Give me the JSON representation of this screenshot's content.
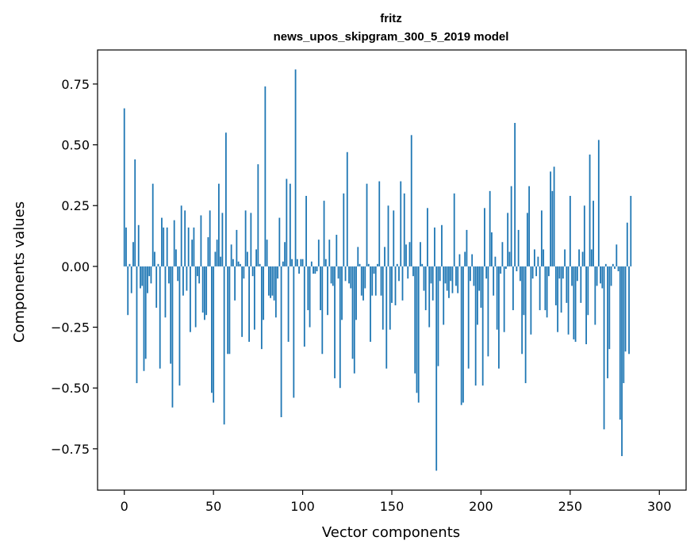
{
  "chart_data": {
    "type": "bar",
    "title": "fritz",
    "subtitle": "news_upos_skipgram_300_5_2019 model",
    "xlabel": "Vector components",
    "ylabel": "Components values",
    "xlim": [
      -15,
      315
    ],
    "ylim": [
      -0.92,
      0.89
    ],
    "xticks": [
      0,
      50,
      100,
      150,
      200,
      250,
      300
    ],
    "yticks": [
      -0.75,
      -0.5,
      -0.25,
      0.0,
      0.25,
      0.5,
      0.75
    ],
    "ytick_labels": [
      "−0.75",
      "−0.50",
      "−0.25",
      "0.00",
      "0.25",
      "0.50",
      "0.75"
    ],
    "xtick_labels": [
      "0",
      "50",
      "100",
      "150",
      "200",
      "250",
      "300"
    ],
    "bar_color": "#1f77b4",
    "values": [
      0.65,
      0.16,
      -0.2,
      0.01,
      -0.11,
      0.1,
      0.44,
      -0.48,
      0.17,
      -0.09,
      -0.08,
      -0.43,
      -0.38,
      -0.11,
      -0.04,
      -0.07,
      0.34,
      0.06,
      -0.17,
      0.01,
      -0.42,
      0.2,
      0.16,
      -0.21,
      0.16,
      -0.07,
      -0.4,
      -0.58,
      0.19,
      0.07,
      -0.06,
      -0.49,
      0.25,
      -0.12,
      0.23,
      -0.1,
      0.16,
      -0.27,
      0.11,
      0.16,
      -0.25,
      -0.04,
      -0.07,
      0.21,
      -0.19,
      -0.22,
      -0.2,
      0.12,
      0.23,
      -0.52,
      -0.56,
      0.06,
      0.11,
      0.34,
      0.04,
      0.22,
      -0.65,
      0.55,
      -0.36,
      -0.36,
      0.09,
      0.03,
      -0.14,
      0.15,
      0.02,
      0.01,
      -0.29,
      -0.05,
      0.23,
      0.06,
      -0.31,
      0.22,
      -0.04,
      -0.26,
      0.07,
      0.42,
      0.01,
      -0.34,
      -0.22,
      0.74,
      0.11,
      -0.12,
      -0.13,
      -0.12,
      -0.14,
      -0.21,
      -0.05,
      0.2,
      -0.62,
      0.02,
      0.1,
      0.36,
      -0.31,
      0.34,
      0.03,
      -0.54,
      0.81,
      0.03,
      -0.03,
      0.03,
      0.03,
      -0.33,
      0.29,
      -0.18,
      -0.25,
      0.02,
      -0.03,
      -0.03,
      -0.02,
      0.11,
      -0.18,
      -0.36,
      0.27,
      0.03,
      -0.2,
      0.11,
      -0.07,
      -0.08,
      -0.46,
      0.13,
      -0.05,
      -0.5,
      -0.22,
      0.3,
      -0.06,
      0.47,
      -0.07,
      -0.09,
      -0.38,
      -0.44,
      -0.22,
      0.08,
      0.01,
      -0.12,
      -0.14,
      -0.09,
      0.34,
      0.01,
      -0.31,
      -0.12,
      -0.03,
      -0.12,
      0.01,
      0.35,
      -0.12,
      -0.26,
      0.08,
      -0.42,
      0.25,
      -0.26,
      -0.15,
      0.23,
      -0.16,
      0.01,
      -0.06,
      0.35,
      -0.14,
      0.3,
      0.09,
      -0.05,
      0.1,
      0.54,
      -0.04,
      -0.44,
      -0.52,
      -0.56,
      0.1,
      0.01,
      -0.1,
      -0.18,
      0.24,
      -0.25,
      -0.07,
      -0.14,
      0.16,
      -0.84,
      -0.41,
      -0.06,
      0.17,
      -0.24,
      -0.07,
      -0.1,
      -0.13,
      -0.06,
      -0.11,
      0.3,
      -0.08,
      -0.11,
      0.05,
      -0.57,
      -0.56,
      0.06,
      0.15,
      -0.42,
      -0.06,
      0.05,
      -0.08,
      -0.49,
      -0.24,
      -0.1,
      -0.17,
      -0.49,
      0.24,
      -0.05,
      -0.37,
      0.31,
      0.14,
      -0.12,
      0.04,
      -0.26,
      -0.42,
      -0.03,
      0.1,
      -0.27,
      -0.01,
      0.22,
      0.06,
      0.33,
      -0.18,
      0.59,
      -0.02,
      0.15,
      -0.06,
      -0.36,
      -0.2,
      -0.48,
      0.22,
      0.33,
      -0.28,
      -0.05,
      0.07,
      -0.04,
      0.04,
      -0.18,
      0.23,
      0.07,
      -0.18,
      -0.21,
      -0.04,
      0.39,
      0.31,
      0.41,
      -0.16,
      -0.27,
      -0.05,
      -0.19,
      -0.05,
      0.07,
      -0.15,
      -0.28,
      0.29,
      -0.08,
      -0.3,
      -0.31,
      -0.06,
      0.07,
      -0.15,
      0.06,
      0.25,
      -0.32,
      -0.2,
      0.46,
      0.07,
      0.27,
      -0.24,
      -0.08,
      0.52,
      -0.07,
      -0.09,
      -0.67,
      0.01,
      -0.46,
      -0.34,
      -0.08,
      0.01,
      -0.01,
      0.09,
      -0.02,
      -0.63,
      -0.78,
      -0.48,
      -0.35,
      0.18,
      -0.36,
      0.29
    ]
  }
}
